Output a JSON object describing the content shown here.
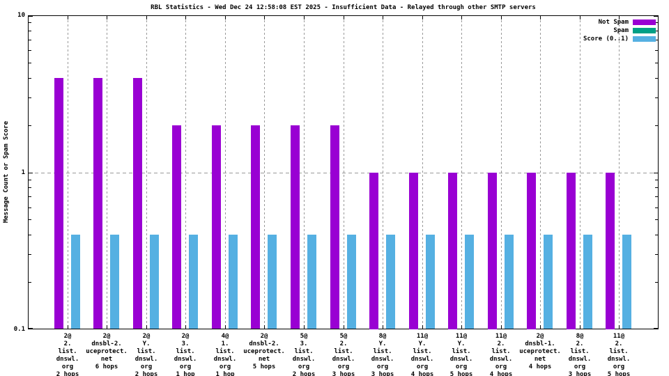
{
  "chart_data": {
    "type": "bar",
    "title": "RBL Statistics - Wed Dec 24 12:58:08 EST 2025 - Insufficient Data - Relayed through other SMTP servers",
    "ylabel": "Message Count or Spam Score",
    "yscale": "log",
    "ylim": [
      0.1,
      10
    ],
    "yticks": [
      {
        "value": 10,
        "label": "10"
      },
      {
        "value": 1,
        "label": "1"
      },
      {
        "value": 0.1,
        "label": "0.1"
      }
    ],
    "grid": {
      "vertical_dashed": true,
      "horizontal_dashed_at": 1,
      "grid_color": "#999999"
    },
    "legend_position": "top-right",
    "categories": [
      [
        "2@",
        "2.",
        "list.",
        "dnswl.",
        "org",
        "2 hops"
      ],
      [
        "2@",
        "dnsbl-2.",
        "uceprotect.",
        "net",
        "6 hops"
      ],
      [
        "2@",
        "Y.",
        "list.",
        "dnswl.",
        "org",
        "2 hops"
      ],
      [
        "2@",
        "3.",
        "list.",
        "dnswl.",
        "org",
        "1 hop"
      ],
      [
        "4@",
        "1.",
        "list.",
        "dnswl.",
        "org",
        "1 hop"
      ],
      [
        "2@",
        "dnsbl-2.",
        "uceprotect.",
        "net",
        "5 hops"
      ],
      [
        "5@",
        "3.",
        "list.",
        "dnswl.",
        "org",
        "2 hops"
      ],
      [
        "5@",
        "2.",
        "list.",
        "dnswl.",
        "org",
        "3 hops"
      ],
      [
        "8@",
        "Y.",
        "list.",
        "dnswl.",
        "org",
        "3 hops"
      ],
      [
        "11@",
        "Y.",
        "list.",
        "dnswl.",
        "org",
        "4 hops"
      ],
      [
        "11@",
        "Y.",
        "list.",
        "dnswl.",
        "org",
        "5 hops"
      ],
      [
        "11@",
        "2.",
        "list.",
        "dnswl.",
        "org",
        "4 hops"
      ],
      [
        "2@",
        "dnsbl-1.",
        "uceprotect.",
        "net",
        "4 hops"
      ],
      [
        "8@",
        "2.",
        "list.",
        "dnswl.",
        "org",
        "3 hops"
      ],
      [
        "11@",
        "2.",
        "list.",
        "dnswl.",
        "org",
        "5 hops"
      ]
    ],
    "series": [
      {
        "name": "Not Spam",
        "color": "#9900d3",
        "bar_slot": "left",
        "values": [
          4,
          4,
          4,
          2,
          2,
          2,
          2,
          2,
          1,
          1,
          1,
          1,
          1,
          1,
          1
        ]
      },
      {
        "name": "Spam",
        "color": "#00a086",
        "bar_slot": "none",
        "values": [
          0,
          0,
          0,
          0,
          0,
          0,
          0,
          0,
          0,
          0,
          0,
          0,
          0,
          0,
          0
        ]
      },
      {
        "name": "Score (0..1)",
        "color": "#55b0e2",
        "bar_slot": "right",
        "values": [
          0.4,
          0.4,
          0.4,
          0.4,
          0.4,
          0.4,
          0.4,
          0.4,
          0.4,
          0.4,
          0.4,
          0.4,
          0.4,
          0.4,
          0.4
        ]
      }
    ]
  }
}
